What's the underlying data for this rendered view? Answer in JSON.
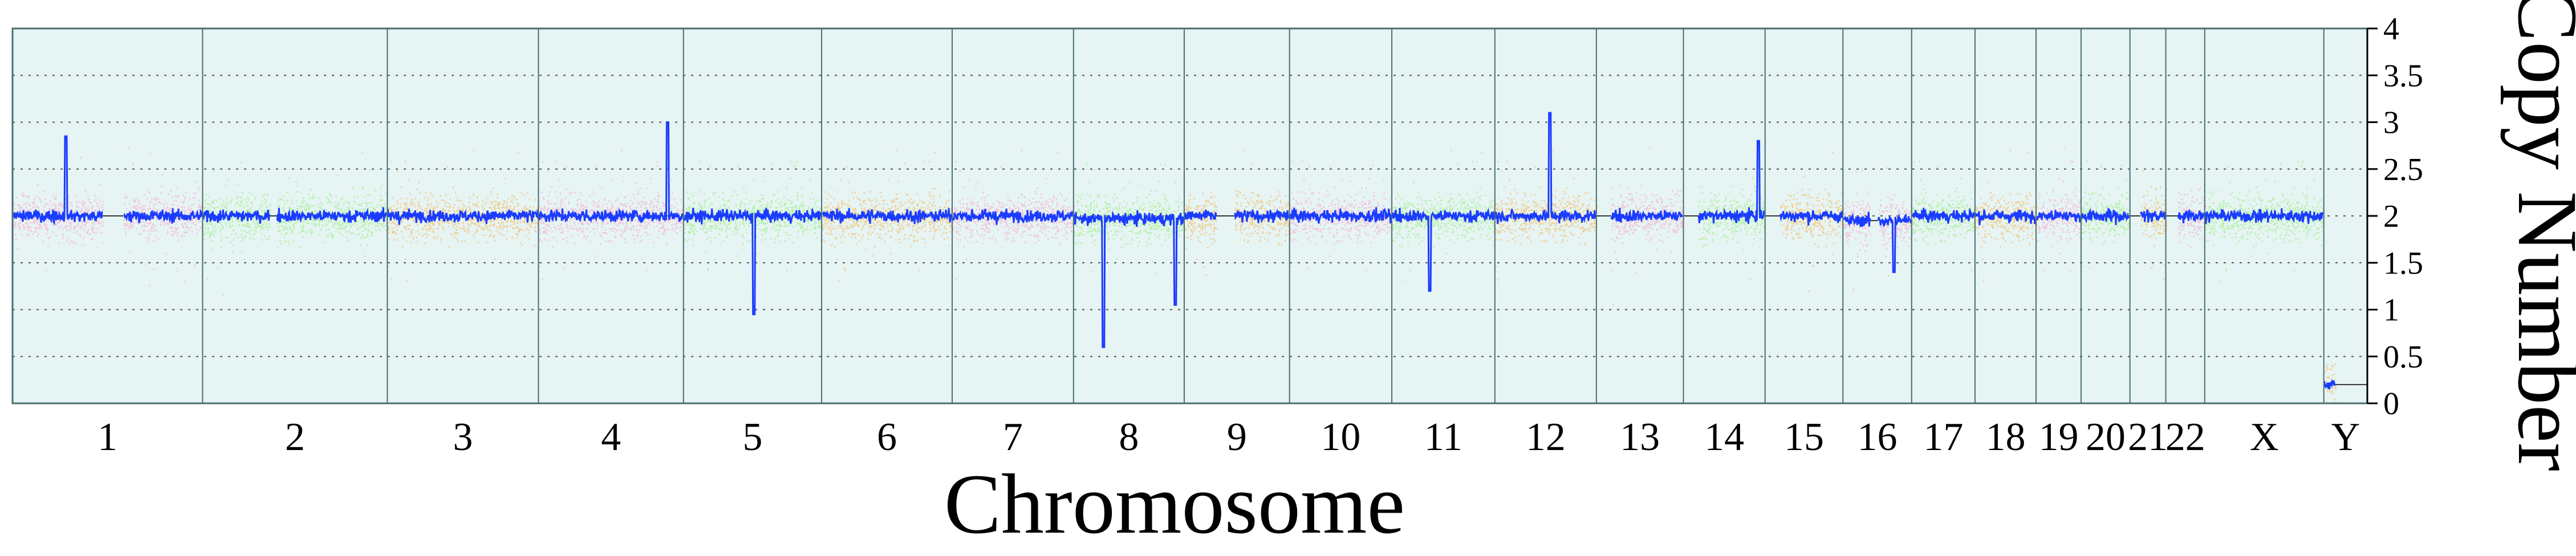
{
  "chart_data": {
    "type": "scatter",
    "xlabel": "Chromosome",
    "ylabel": "Copy Number",
    "ylim": [
      0,
      4
    ],
    "y_ticks": [
      0,
      0.5,
      1,
      1.5,
      2,
      2.5,
      3,
      3.5,
      4
    ],
    "y_tick_labels": [
      "0",
      "0.5",
      "1",
      "1.5",
      "2",
      "2.5",
      "3",
      "3.5",
      "4"
    ],
    "grid": "dotted horizontal",
    "colors": {
      "panel_bg": "#e6f4f4",
      "mean_line": "#1a3cff",
      "pink": "#f9a3c8",
      "green": "#90ee70",
      "orange": "#f8b24a"
    },
    "chromosomes": [
      {
        "label": "1",
        "length": 249,
        "color": "pink",
        "mean": 2.0,
        "gaps": [
          [
            118,
            145
          ]
        ]
      },
      {
        "label": "2",
        "length": 242,
        "color": "green",
        "mean": 2.0,
        "gaps": [
          [
            88,
            97
          ]
        ]
      },
      {
        "label": "3",
        "length": 198,
        "color": "orange",
        "mean": 2.0,
        "gaps": []
      },
      {
        "label": "4",
        "length": 190,
        "color": "pink",
        "mean": 2.0,
        "gaps": []
      },
      {
        "label": "5",
        "length": 181,
        "color": "green",
        "mean": 2.0,
        "gaps": []
      },
      {
        "label": "6",
        "length": 171,
        "color": "orange",
        "mean": 2.0,
        "gaps": []
      },
      {
        "label": "7",
        "length": 159,
        "color": "pink",
        "mean": 2.0,
        "gaps": []
      },
      {
        "label": "8",
        "length": 145,
        "color": "green",
        "mean": 1.97,
        "gaps": []
      },
      {
        "label": "9",
        "length": 138,
        "color": "orange",
        "mean": 2.0,
        "gaps": [
          [
            42,
            66
          ]
        ]
      },
      {
        "label": "10",
        "length": 134,
        "color": "pink",
        "mean": 2.0,
        "gaps": []
      },
      {
        "label": "11",
        "length": 135,
        "color": "green",
        "mean": 2.0,
        "gaps": []
      },
      {
        "label": "12",
        "length": 133,
        "color": "orange",
        "mean": 2.0,
        "gaps": []
      },
      {
        "label": "13",
        "length": 114,
        "color": "pink",
        "mean": 2.0,
        "gaps": [
          [
            0,
            19
          ]
        ]
      },
      {
        "label": "14",
        "length": 107,
        "color": "green",
        "mean": 2.0,
        "gaps": [
          [
            0,
            19
          ]
        ]
      },
      {
        "label": "15",
        "length": 102,
        "color": "orange",
        "mean": 2.0,
        "gaps": [
          [
            0,
            20
          ]
        ]
      },
      {
        "label": "16",
        "length": 90,
        "color": "pink",
        "mean": 1.95,
        "gaps": [
          [
            36,
            46
          ]
        ]
      },
      {
        "label": "17",
        "length": 83,
        "color": "green",
        "mean": 2.0,
        "gaps": []
      },
      {
        "label": "18",
        "length": 80,
        "color": "orange",
        "mean": 2.0,
        "gaps": []
      },
      {
        "label": "19",
        "length": 59,
        "color": "pink",
        "mean": 2.0,
        "gaps": []
      },
      {
        "label": "20",
        "length": 64,
        "color": "green",
        "mean": 2.0,
        "gaps": []
      },
      {
        "label": "21",
        "length": 47,
        "color": "orange",
        "mean": 2.0,
        "gaps": [
          [
            0,
            14
          ]
        ]
      },
      {
        "label": "22",
        "length": 51,
        "color": "pink",
        "mean": 2.0,
        "gaps": [
          [
            0,
            16
          ]
        ]
      },
      {
        "label": "X",
        "length": 156,
        "color": "green",
        "mean": 2.0,
        "gaps": []
      },
      {
        "label": "Y",
        "length": 57,
        "color": "orange",
        "mean": 0.2,
        "gaps": [
          [
            15,
            57
          ]
        ]
      }
    ],
    "notable_deviations": [
      {
        "chromosome": "1",
        "position": 0.28,
        "value": 2.85
      },
      {
        "chromosome": "4",
        "position": 0.89,
        "value": 3.0
      },
      {
        "chromosome": "5",
        "position": 0.51,
        "value": 0.95
      },
      {
        "chromosome": "8",
        "position": 0.27,
        "value": 0.6
      },
      {
        "chromosome": "8",
        "position": 0.92,
        "value": 1.05
      },
      {
        "chromosome": "11",
        "position": 0.37,
        "value": 1.2
      },
      {
        "chromosome": "12",
        "position": 0.54,
        "value": 3.1
      },
      {
        "chromosome": "14",
        "position": 0.92,
        "value": 2.8
      },
      {
        "chromosome": "16",
        "position": 0.74,
        "value": 1.4
      }
    ]
  }
}
